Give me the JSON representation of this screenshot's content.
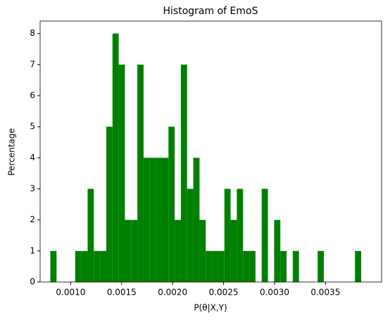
{
  "chart_data": {
    "type": "histogram",
    "title": "Histogram of EmoS",
    "xlabel": "P(θ|X,Y)",
    "ylabel": "Percentage",
    "bins": [
      0.0008,
      0.000861,
      0.000922,
      0.000983,
      0.001044,
      0.001105,
      0.001166,
      0.001227,
      0.001288,
      0.001349,
      0.00141,
      0.001471,
      0.001532,
      0.001593,
      0.001654,
      0.001715,
      0.001776,
      0.001837,
      0.001898,
      0.001959,
      0.00202,
      0.002081,
      0.002142,
      0.002203,
      0.002264,
      0.002325,
      0.002386,
      0.002447,
      0.002508,
      0.002569,
      0.00263,
      0.002691,
      0.002752,
      0.002813,
      0.002874,
      0.002935,
      0.002996,
      0.003057,
      0.003118,
      0.003179,
      0.00324,
      0.003301,
      0.003362,
      0.003423,
      0.003484,
      0.003545,
      0.003606,
      0.003667,
      0.003728,
      0.003789,
      0.00385
    ],
    "counts": [
      1,
      0,
      0,
      0,
      1,
      1,
      3,
      1,
      1,
      5,
      8,
      7,
      2,
      2,
      7,
      4,
      4,
      4,
      4,
      5,
      2,
      7,
      3,
      4,
      2,
      1,
      1,
      1,
      3,
      2,
      3,
      1,
      1,
      0,
      3,
      0,
      2,
      1,
      0,
      1,
      0,
      0,
      0,
      1,
      0,
      0,
      0,
      0,
      0,
      1
    ],
    "color": "#008000",
    "xlim": [
      0.0007,
      0.00405
    ],
    "xticks": [
      {
        "value": 0.001,
        "label": "0.0010"
      },
      {
        "value": 0.0015,
        "label": "0.0015"
      },
      {
        "value": 0.002,
        "label": "0.0020"
      },
      {
        "value": 0.0025,
        "label": "0.0025"
      },
      {
        "value": 0.003,
        "label": "0.0030"
      },
      {
        "value": 0.0035,
        "label": "0.0035"
      }
    ],
    "ylim": [
      0,
      8.4
    ],
    "yticks": [
      0,
      1,
      2,
      3,
      4,
      5,
      6,
      7,
      8
    ]
  }
}
